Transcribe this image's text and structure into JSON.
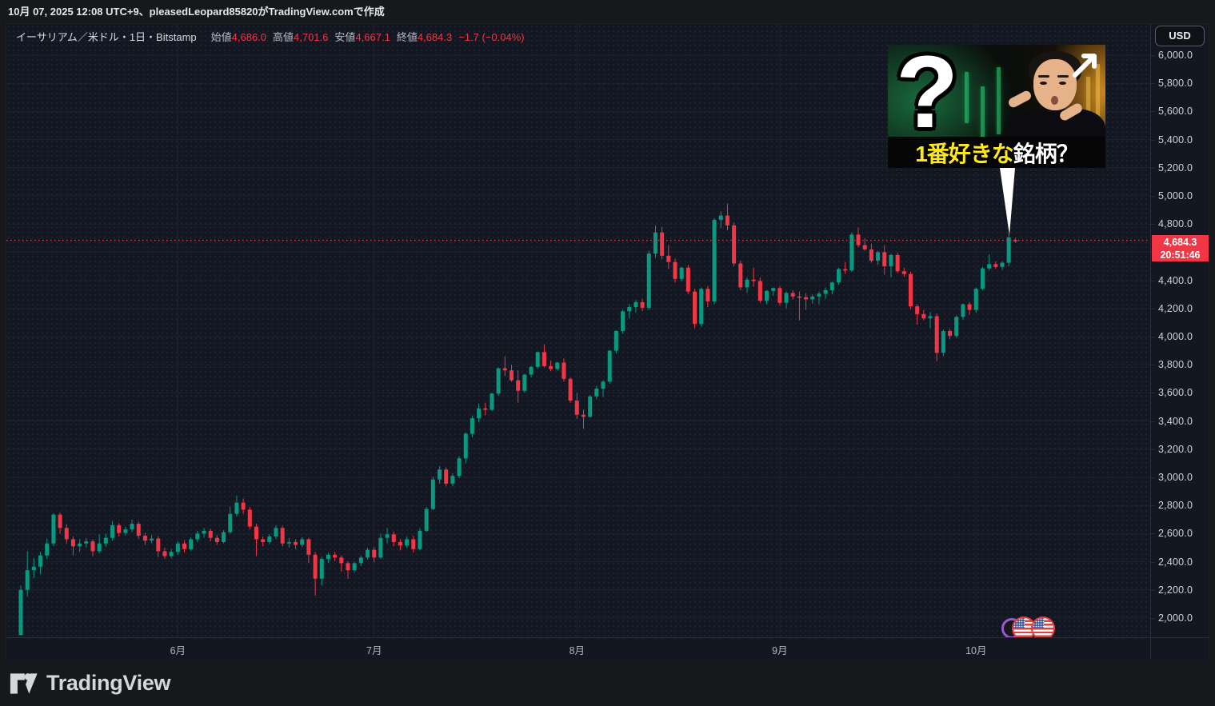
{
  "page": {
    "creation_note": "10月 07, 2025 12:08 UTC+9、pleasedLeopard85820がTradingView.comで作成",
    "brand": "TradingView"
  },
  "header": {
    "symbol_title": "イーサリアム／米ドル・1日・Bitstamp",
    "open_label": "始値",
    "open_value": "4,686.0",
    "high_label": "高値",
    "high_value": "4,701.6",
    "low_label": "安値",
    "low_value": "4,667.1",
    "close_label": "終値",
    "close_value": "4,684.3",
    "change": "−1.7 (−0.04%)"
  },
  "price_axis": {
    "currency_button": "USD",
    "last_price_label": {
      "price": "4,684.3",
      "countdown": "20:51:46"
    }
  },
  "time_axis": {
    "labels": [
      {
        "text": "6月",
        "index": 24
      },
      {
        "text": "7月",
        "index": 54
      },
      {
        "text": "8月",
        "index": 85
      },
      {
        "text": "9月",
        "index": 116
      },
      {
        "text": "10月",
        "index": 146
      }
    ]
  },
  "overlay": {
    "question_mark": "?",
    "caption_yellow": "1番好きな",
    "caption_white": "銘柄？"
  },
  "events": {
    "markers": [
      "us-flag-economic-event",
      "us-flag-economic-event",
      "purple-event"
    ]
  },
  "chart_data": {
    "type": "candlestick",
    "title": "イーサリアム／米ドル・1日・Bitstamp",
    "symbol": "ETH/USD",
    "exchange": "Bitstamp",
    "interval": "1日",
    "start_date": "2025-05-08",
    "end_date": "2025-10-07",
    "last_price": 4684.3,
    "current_bar": {
      "open": 4686.0,
      "high": 4701.6,
      "low": 4667.1,
      "close": 4684.3,
      "change": "−1.7",
      "change_pct": "−0.04%"
    },
    "ylim": [
      2000,
      6000
    ],
    "grid": {
      "h_min": 2000,
      "h_max": 6000,
      "h_step": 200
    },
    "legend_position": "top-left",
    "colors": {
      "up": "#089981",
      "down": "#f23645",
      "grid": "#1d2230",
      "axis_text": "#d1d4dc",
      "last_price_line": "#f23645",
      "label_bg": "#f23645"
    },
    "scale": {
      "x0": 18,
      "dx": 8.18,
      "yTop": 39,
      "pxPerPoint": 0.176,
      "pMax": 6000
    },
    "ohlc": [
      [
        1880,
        2230,
        1875,
        2200
      ],
      [
        2200,
        2475,
        2155,
        2340
      ],
      [
        2340,
        2425,
        2285,
        2365
      ],
      [
        2365,
        2470,
        2310,
        2445
      ],
      [
        2445,
        2565,
        2420,
        2530
      ],
      [
        2530,
        2745,
        2510,
        2735
      ],
      [
        2735,
        2750,
        2600,
        2640
      ],
      [
        2640,
        2665,
        2530,
        2560
      ],
      [
        2560,
        2580,
        2445,
        2510
      ],
      [
        2510,
        2560,
        2470,
        2530
      ],
      [
        2530,
        2570,
        2500,
        2545
      ],
      [
        2545,
        2560,
        2440,
        2475
      ],
      [
        2475,
        2595,
        2460,
        2530
      ],
      [
        2530,
        2600,
        2505,
        2570
      ],
      [
        2570,
        2690,
        2550,
        2660
      ],
      [
        2660,
        2675,
        2580,
        2605
      ],
      [
        2605,
        2650,
        2585,
        2630
      ],
      [
        2630,
        2700,
        2610,
        2670
      ],
      [
        2670,
        2685,
        2565,
        2585
      ],
      [
        2585,
        2605,
        2520,
        2550
      ],
      [
        2550,
        2590,
        2530,
        2565
      ],
      [
        2565,
        2580,
        2435,
        2475
      ],
      [
        2475,
        2500,
        2420,
        2440
      ],
      [
        2440,
        2490,
        2425,
        2470
      ],
      [
        2470,
        2545,
        2450,
        2530
      ],
      [
        2530,
        2555,
        2465,
        2490
      ],
      [
        2490,
        2575,
        2475,
        2560
      ],
      [
        2560,
        2620,
        2540,
        2600
      ],
      [
        2600,
        2640,
        2570,
        2620
      ],
      [
        2620,
        2635,
        2545,
        2570
      ],
      [
        2570,
        2590,
        2520,
        2540
      ],
      [
        2540,
        2625,
        2530,
        2610
      ],
      [
        2610,
        2790,
        2600,
        2740
      ],
      [
        2740,
        2870,
        2720,
        2820
      ],
      [
        2820,
        2850,
        2740,
        2770
      ],
      [
        2770,
        2790,
        2630,
        2650
      ],
      [
        2650,
        2670,
        2440,
        2560
      ],
      [
        2560,
        2580,
        2510,
        2540
      ],
      [
        2540,
        2595,
        2525,
        2580
      ],
      [
        2580,
        2660,
        2560,
        2640
      ],
      [
        2640,
        2655,
        2510,
        2530
      ],
      [
        2530,
        2570,
        2500,
        2540
      ],
      [
        2540,
        2560,
        2490,
        2520
      ],
      [
        2520,
        2575,
        2505,
        2560
      ],
      [
        2560,
        2570,
        2390,
        2450
      ],
      [
        2450,
        2470,
        2160,
        2280
      ],
      [
        2280,
        2435,
        2230,
        2420
      ],
      [
        2420,
        2465,
        2390,
        2450
      ],
      [
        2450,
        2470,
        2405,
        2430
      ],
      [
        2430,
        2445,
        2330,
        2390
      ],
      [
        2390,
        2405,
        2280,
        2340
      ],
      [
        2340,
        2400,
        2325,
        2390
      ],
      [
        2390,
        2445,
        2370,
        2430
      ],
      [
        2430,
        2500,
        2415,
        2485
      ],
      [
        2485,
        2505,
        2395,
        2430
      ],
      [
        2430,
        2600,
        2420,
        2570
      ],
      [
        2570,
        2640,
        2530,
        2595
      ],
      [
        2595,
        2615,
        2510,
        2540
      ],
      [
        2540,
        2560,
        2480,
        2515
      ],
      [
        2515,
        2580,
        2500,
        2560
      ],
      [
        2560,
        2585,
        2465,
        2490
      ],
      [
        2490,
        2640,
        2480,
        2620
      ],
      [
        2620,
        2790,
        2610,
        2775
      ],
      [
        2775,
        3005,
        2765,
        2985
      ],
      [
        2985,
        3080,
        2955,
        3055
      ],
      [
        3055,
        3070,
        2935,
        2955
      ],
      [
        2955,
        3030,
        2935,
        3010
      ],
      [
        3010,
        3150,
        2995,
        3135
      ],
      [
        3135,
        3320,
        3100,
        3310
      ],
      [
        3310,
        3440,
        3285,
        3420
      ],
      [
        3420,
        3525,
        3390,
        3490
      ],
      [
        3490,
        3530,
        3440,
        3480
      ],
      [
        3480,
        3600,
        3470,
        3595
      ],
      [
        3595,
        3780,
        3580,
        3775
      ],
      [
        3775,
        3860,
        3720,
        3760
      ],
      [
        3760,
        3800,
        3680,
        3690
      ],
      [
        3690,
        3760,
        3530,
        3615
      ],
      [
        3615,
        3735,
        3600,
        3730
      ],
      [
        3730,
        3790,
        3710,
        3785
      ],
      [
        3785,
        3895,
        3770,
        3890
      ],
      [
        3890,
        3945,
        3780,
        3790
      ],
      [
        3790,
        3830,
        3755,
        3770
      ],
      [
        3770,
        3820,
        3760,
        3815
      ],
      [
        3815,
        3845,
        3680,
        3700
      ],
      [
        3700,
        3710,
        3530,
        3545
      ],
      [
        3545,
        3600,
        3415,
        3445
      ],
      [
        3445,
        3480,
        3345,
        3430
      ],
      [
        3430,
        3585,
        3425,
        3575
      ],
      [
        3575,
        3650,
        3555,
        3630
      ],
      [
        3630,
        3690,
        3570,
        3680
      ],
      [
        3680,
        3905,
        3665,
        3900
      ],
      [
        3900,
        4045,
        3880,
        4040
      ],
      [
        4040,
        4190,
        4020,
        4180
      ],
      [
        4180,
        4230,
        4130,
        4210
      ],
      [
        4210,
        4260,
        4170,
        4245
      ],
      [
        4245,
        4270,
        4180,
        4205
      ],
      [
        4205,
        4610,
        4190,
        4590
      ],
      [
        4590,
        4790,
        4560,
        4740
      ],
      [
        4740,
        4780,
        4550,
        4575
      ],
      [
        4575,
        4650,
        4480,
        4530
      ],
      [
        4530,
        4555,
        4385,
        4410
      ],
      [
        4410,
        4495,
        4395,
        4490
      ],
      [
        4490,
        4510,
        4300,
        4320
      ],
      [
        4320,
        4340,
        4060,
        4090
      ],
      [
        4090,
        4350,
        4070,
        4340
      ],
      [
        4340,
        4360,
        4210,
        4250
      ],
      [
        4250,
        4840,
        4230,
        4830
      ],
      [
        4830,
        4890,
        4770,
        4860
      ],
      [
        4860,
        4945,
        4755,
        4790
      ],
      [
        4790,
        4810,
        4500,
        4520
      ],
      [
        4520,
        4540,
        4330,
        4350
      ],
      [
        4350,
        4420,
        4310,
        4405
      ],
      [
        4405,
        4490,
        4355,
        4395
      ],
      [
        4395,
        4420,
        4240,
        4255
      ],
      [
        4255,
        4330,
        4230,
        4325
      ],
      [
        4325,
        4350,
        4290,
        4345
      ],
      [
        4345,
        4360,
        4220,
        4240
      ],
      [
        4240,
        4320,
        4200,
        4310
      ],
      [
        4310,
        4330,
        4265,
        4285
      ],
      [
        4285,
        4320,
        4115,
        4280
      ],
      [
        4280,
        4310,
        4190,
        4265
      ],
      [
        4265,
        4300,
        4235,
        4285
      ],
      [
        4285,
        4320,
        4230,
        4305
      ],
      [
        4305,
        4350,
        4270,
        4330
      ],
      [
        4330,
        4390,
        4300,
        4385
      ],
      [
        4385,
        4490,
        4370,
        4480
      ],
      [
        4480,
        4530,
        4445,
        4470
      ],
      [
        4470,
        4740,
        4460,
        4725
      ],
      [
        4725,
        4775,
        4635,
        4650
      ],
      [
        4650,
        4700,
        4610,
        4620
      ],
      [
        4620,
        4660,
        4525,
        4540
      ],
      [
        4540,
        4610,
        4510,
        4600
      ],
      [
        4600,
        4650,
        4440,
        4500
      ],
      [
        4500,
        4590,
        4420,
        4580
      ],
      [
        4580,
        4595,
        4450,
        4465
      ],
      [
        4465,
        4490,
        4425,
        4445
      ],
      [
        4445,
        4460,
        4195,
        4215
      ],
      [
        4215,
        4230,
        4085,
        4160
      ],
      [
        4160,
        4190,
        4115,
        4130
      ],
      [
        4130,
        4175,
        4060,
        4145
      ],
      [
        4145,
        4165,
        3825,
        3885
      ],
      [
        3885,
        4050,
        3860,
        4040
      ],
      [
        4040,
        4055,
        3980,
        4005
      ],
      [
        4005,
        4150,
        3990,
        4140
      ],
      [
        4140,
        4235,
        4120,
        4230
      ],
      [
        4230,
        4245,
        4155,
        4190
      ],
      [
        4190,
        4350,
        4170,
        4340
      ],
      [
        4340,
        4495,
        4330,
        4485
      ],
      [
        4485,
        4585,
        4470,
        4515
      ],
      [
        4515,
        4535,
        4480,
        4495
      ],
      [
        4495,
        4535,
        4475,
        4525
      ],
      [
        4525,
        4730,
        4500,
        4705
      ],
      [
        4686,
        4701.6,
        4667.1,
        4684.3
      ]
    ]
  }
}
